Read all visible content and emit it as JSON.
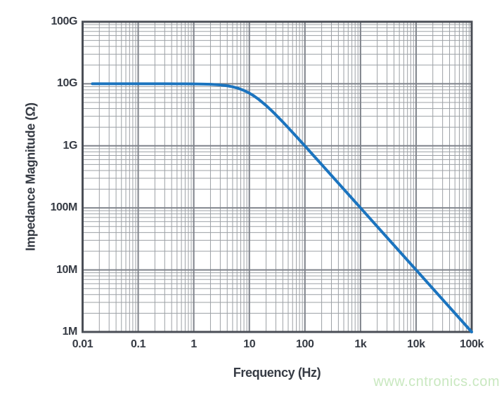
{
  "figure": {
    "background": "#ffffff",
    "watermark": {
      "text": "www.cntronics.com",
      "color": "#c9e8c0"
    },
    "colors": {
      "curve": "#1b74bf",
      "grid_minor": "#9ca0a5",
      "grid_major": "#7e828a",
      "plot_border": "#4a4e56",
      "label": "#363b44"
    }
  },
  "chart_data": {
    "type": "line",
    "title": "",
    "xlabel": "Frequency (Hz)",
    "ylabel": "Impedance Magnitude (Ω)",
    "x_scale": "log",
    "y_scale": "log",
    "xlim": [
      0.01,
      100000
    ],
    "ylim": [
      1000000,
      100000000000
    ],
    "grid": "major and minor log grid, on",
    "legend": "none",
    "x_ticks": [
      {
        "value": 0.01,
        "label": "0.01"
      },
      {
        "value": 0.1,
        "label": "0.1"
      },
      {
        "value": 1,
        "label": "1"
      },
      {
        "value": 10,
        "label": "10"
      },
      {
        "value": 100,
        "label": "100"
      },
      {
        "value": 1000,
        "label": "1k"
      },
      {
        "value": 10000,
        "label": "10k"
      },
      {
        "value": 100000,
        "label": "100k"
      }
    ],
    "y_ticks": [
      {
        "value": 1000000,
        "label": "1M"
      },
      {
        "value": 10000000,
        "label": "10M"
      },
      {
        "value": 100000000,
        "label": "100M"
      },
      {
        "value": 1000000000,
        "label": "1G"
      },
      {
        "value": 10000000000,
        "label": "10G"
      },
      {
        "value": 100000000000,
        "label": "100G"
      }
    ],
    "series": [
      {
        "name": "impedance-magnitude",
        "color": "#1b74bf",
        "points": [
          [
            0.015,
            10000000000.0
          ],
          [
            0.02,
            10000000000.0
          ],
          [
            0.03,
            10000000000.0
          ],
          [
            0.05,
            10000000000.0
          ],
          [
            0.07,
            10000000000.0
          ],
          [
            0.1,
            10000000000.0
          ],
          [
            0.15,
            10000000000.0
          ],
          [
            0.2,
            10000000000.0
          ],
          [
            0.3,
            9996000000.0
          ],
          [
            0.5,
            9988000000.0
          ],
          [
            0.7,
            9976000000.0
          ],
          [
            1,
            9950000000.0
          ],
          [
            1.5,
            9889000000.0
          ],
          [
            2,
            9806000000.0
          ],
          [
            3,
            9578000000.0
          ],
          [
            4,
            9285000000.0
          ],
          [
            5,
            8944000000.0
          ],
          [
            6,
            8575000000.0
          ],
          [
            8,
            7809000000.0
          ],
          [
            10,
            7071000000.0
          ],
          [
            12,
            6402000000.0
          ],
          [
            15,
            5547000000.0
          ],
          [
            20,
            4472000000.0
          ],
          [
            25,
            3714000000.0
          ],
          [
            30,
            3162000000.0
          ],
          [
            40,
            2425000000.0
          ],
          [
            50,
            1961000000.0
          ],
          [
            70,
            1414000000.0
          ],
          [
            100,
            995000000.0
          ],
          [
            150,
            664400000.0
          ],
          [
            200,
            499400000.0
          ],
          [
            300,
            333100000.0
          ],
          [
            500,
            200000000.0
          ],
          [
            700,
            142800000.0
          ],
          [
            1000,
            100000000.0
          ],
          [
            2000,
            50000000.0
          ],
          [
            3000,
            33330000.0
          ],
          [
            5000,
            20000000.0
          ],
          [
            10000,
            10000000.0
          ],
          [
            20000,
            5000000.0
          ],
          [
            50000,
            2000000.0
          ],
          [
            100000,
            1000000.0
          ]
        ]
      }
    ]
  }
}
